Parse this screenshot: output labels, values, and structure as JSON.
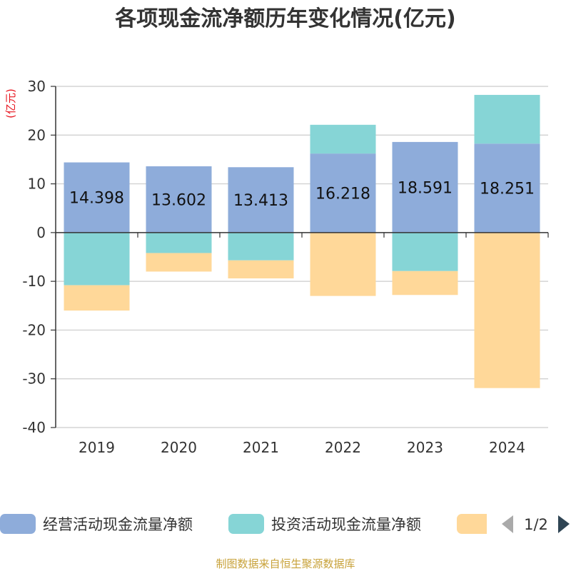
{
  "chart_data": {
    "type": "bar",
    "stacked": true,
    "title": "各项现金流净额历年变化情况(亿元)",
    "ylabel": "(亿元)",
    "xlabel": "",
    "categories": [
      "2019",
      "2020",
      "2021",
      "2022",
      "2023",
      "2024"
    ],
    "ylim": [
      -40,
      30
    ],
    "yticks": [
      30,
      20,
      10,
      0,
      -10,
      -20,
      -30,
      -40
    ],
    "grid": true,
    "series": [
      {
        "name": "经营活动现金流量净额",
        "color": "#8eacda",
        "values": [
          14.398,
          13.602,
          13.413,
          16.218,
          18.591,
          18.251
        ],
        "show_labels": true
      },
      {
        "name": "投资活动现金流量净额",
        "color": "#86d5d6",
        "values": [
          -10.8,
          -4.2,
          -5.7,
          5.9,
          -7.9,
          10.0
        ],
        "show_labels": false
      },
      {
        "name": "",
        "color": "#ffd899",
        "values": [
          -5.2,
          -3.8,
          -3.7,
          -13.0,
          -4.9,
          -31.9
        ],
        "show_labels": false
      }
    ],
    "legend": {
      "position": "bottom",
      "page": "1/2"
    },
    "source": "制图数据来自恒生聚源数据库"
  }
}
